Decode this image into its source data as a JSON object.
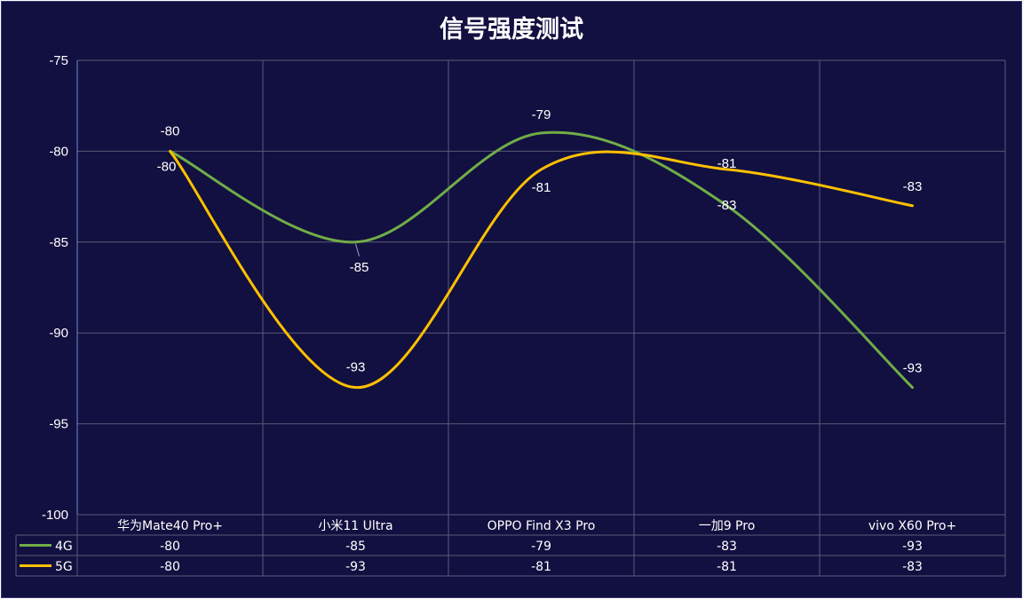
{
  "chart_data": {
    "type": "line",
    "title": "信号强度测试",
    "categories": [
      "华为Mate40 Pro+",
      "小米11 Ultra",
      "OPPO Find X3 Pro",
      "一加9 Pro",
      "vivo X60 Pro+"
    ],
    "series": [
      {
        "name": "4G",
        "values": [
          -80,
          -85,
          -79,
          -83,
          -93
        ],
        "color": "#70AD47"
      },
      {
        "name": "5G",
        "values": [
          -80,
          -93,
          -81,
          -81,
          -83
        ],
        "color": "#FFC000"
      }
    ],
    "ylim": [
      -100,
      -75
    ],
    "yticks": [
      -75,
      -80,
      -85,
      -90,
      -95,
      -100
    ],
    "ytick_labels": [
      "-75",
      "-80",
      "-85",
      "-90",
      "-95",
      "-100"
    ],
    "grid": true,
    "smooth": true,
    "data_table": true,
    "xlabel": "",
    "ylabel": ""
  },
  "colors": {
    "background": "#121040",
    "grid": "#5a5a7a",
    "text": "#ffffff"
  }
}
